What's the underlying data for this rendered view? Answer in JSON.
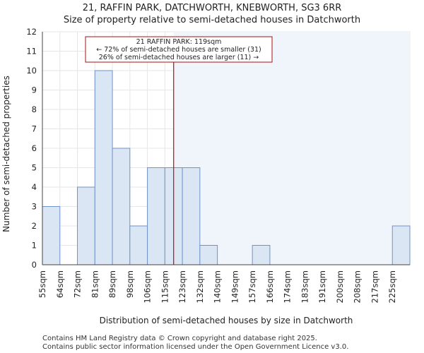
{
  "title_line1": "21, RAFFIN PARK, DATCHWORTH, KNEBWORTH, SG3 6RR",
  "title_line2": "Size of property relative to semi-detached houses in Datchworth",
  "annotation": {
    "line1": "21 RAFFIN PARK: 119sqm",
    "line2": "← 72% of semi-detached houses are smaller (31)",
    "line3": "26% of semi-detached houses are larger (11) →"
  },
  "footer": {
    "line1": "Contains HM Land Registry data © Crown copyright and database right 2025.",
    "line2": "Contains public sector information licensed under the Open Government Licence v3.0."
  },
  "colors": {
    "bar_fill": "#dbe6f5",
    "bar_stroke": "#6f93c9",
    "marker": "#aa1111",
    "grid": "#e6e6e6",
    "axis": "#444444"
  },
  "chart_data": {
    "type": "bar",
    "title": "Size of property relative to semi-detached houses in Datchworth",
    "xlabel": "Distribution of semi-detached houses by size in Datchworth",
    "ylabel": "Number of semi-detached properties",
    "categories": [
      "55sqm",
      "64sqm",
      "72sqm",
      "81sqm",
      "89sqm",
      "98sqm",
      "106sqm",
      "115sqm",
      "123sqm",
      "132sqm",
      "140sqm",
      "149sqm",
      "157sqm",
      "166sqm",
      "174sqm",
      "183sqm",
      "191sqm",
      "200sqm",
      "208sqm",
      "217sqm",
      "225sqm"
    ],
    "values": [
      3,
      0,
      4,
      10,
      6,
      2,
      5,
      5,
      5,
      1,
      0,
      0,
      1,
      0,
      0,
      0,
      0,
      0,
      0,
      0,
      2
    ],
    "ylim": [
      0,
      12
    ],
    "yticks": [
      0,
      1,
      2,
      3,
      4,
      5,
      6,
      7,
      8,
      9,
      10,
      11,
      12
    ],
    "grid": true,
    "marker_value_sqm": 119,
    "marker_label": "21 RAFFIN PARK: 119sqm",
    "highlight_after_marker": true
  }
}
